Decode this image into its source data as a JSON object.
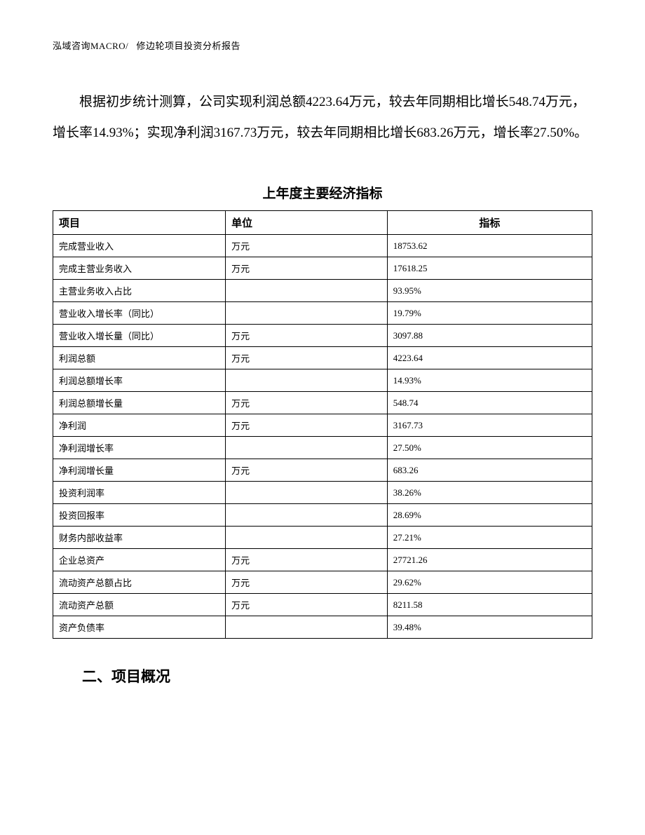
{
  "header": {
    "company": "泓域咨询MACRO/",
    "doc_title": "修边轮项目投资分析报告"
  },
  "paragraph_text": "根据初步统计测算，公司实现利润总额4223.64万元，较去年同期相比增长548.74万元，增长率14.93%；实现净利润3167.73万元，较去年同期相比增长683.26万元，增长率27.50%。",
  "table": {
    "title": "上年度主要经济指标",
    "columns": {
      "item": "项目",
      "unit": "单位",
      "value": "指标"
    },
    "column_widths": [
      "32%",
      "30%",
      "38%"
    ],
    "rows": [
      {
        "item": "完成营业收入",
        "unit": "万元",
        "value": "18753.62"
      },
      {
        "item": "完成主营业务收入",
        "unit": "万元",
        "value": "17618.25"
      },
      {
        "item": "主营业务收入占比",
        "unit": "",
        "value": "93.95%"
      },
      {
        "item": "营业收入增长率（同比）",
        "unit": "",
        "value": "19.79%"
      },
      {
        "item": "营业收入增长量（同比）",
        "unit": "万元",
        "value": "3097.88"
      },
      {
        "item": "利润总额",
        "unit": "万元",
        "value": "4223.64"
      },
      {
        "item": "利润总额增长率",
        "unit": "",
        "value": "14.93%"
      },
      {
        "item": "利润总额增长量",
        "unit": "万元",
        "value": "548.74"
      },
      {
        "item": "净利润",
        "unit": "万元",
        "value": "3167.73"
      },
      {
        "item": "净利润增长率",
        "unit": "",
        "value": "27.50%"
      },
      {
        "item": "净利润增长量",
        "unit": "万元",
        "value": "683.26"
      },
      {
        "item": "投资利润率",
        "unit": "",
        "value": "38.26%"
      },
      {
        "item": "投资回报率",
        "unit": "",
        "value": "28.69%"
      },
      {
        "item": "财务内部收益率",
        "unit": "",
        "value": "27.21%"
      },
      {
        "item": "企业总资产",
        "unit": "万元",
        "value": "27721.26"
      },
      {
        "item": "流动资产总额占比",
        "unit": "万元",
        "value": "29.62%"
      },
      {
        "item": "流动资产总额",
        "unit": "万元",
        "value": "8211.58"
      },
      {
        "item": "资产负债率",
        "unit": "",
        "value": "39.48%"
      }
    ]
  },
  "section_heading": "二、项目概况"
}
